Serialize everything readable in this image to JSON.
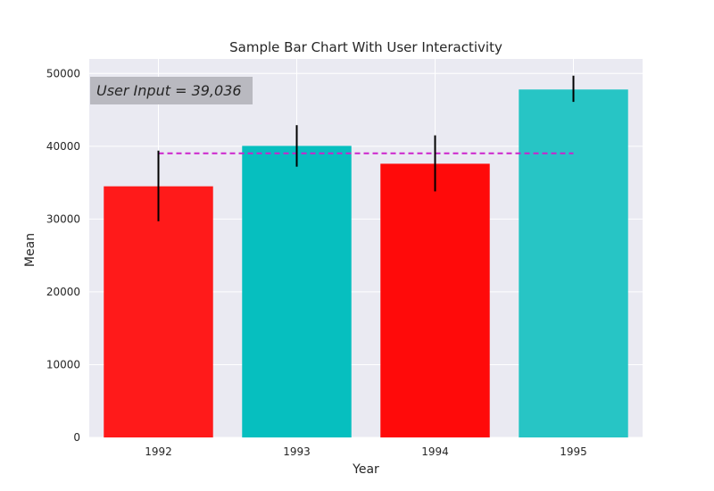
{
  "chart_data": {
    "type": "bar",
    "title": "Sample Bar Chart With User Interactivity",
    "xlabel": "Year",
    "ylabel": "Mean",
    "categories": [
      "1992",
      "1993",
      "1994",
      "1995"
    ],
    "values": [
      34500,
      40050,
      37600,
      47800
    ],
    "error_lower": [
      29700,
      37200,
      33800,
      46100
    ],
    "error_upper": [
      39400,
      42900,
      41500,
      49700
    ],
    "bar_colors": [
      "#ff1a1a",
      "#06bfbf",
      "#ff0a0a",
      "#27c5c5"
    ],
    "ylim": [
      0,
      52000
    ],
    "yticks": [
      0,
      10000,
      20000,
      30000,
      40000,
      50000
    ],
    "ytick_labels": [
      "0",
      "10000",
      "20000",
      "30000",
      "40000",
      "50000"
    ],
    "grid": true,
    "reference_line": {
      "value": 39036,
      "color": "#cc22cc",
      "style": "dashed"
    },
    "annotation": "User Input = 39,036",
    "colors": {
      "plot_background": "#eaeaf2",
      "grid": "#ffffff",
      "error_bar": "#000000",
      "annotation_box": "#b9b9c0"
    }
  }
}
